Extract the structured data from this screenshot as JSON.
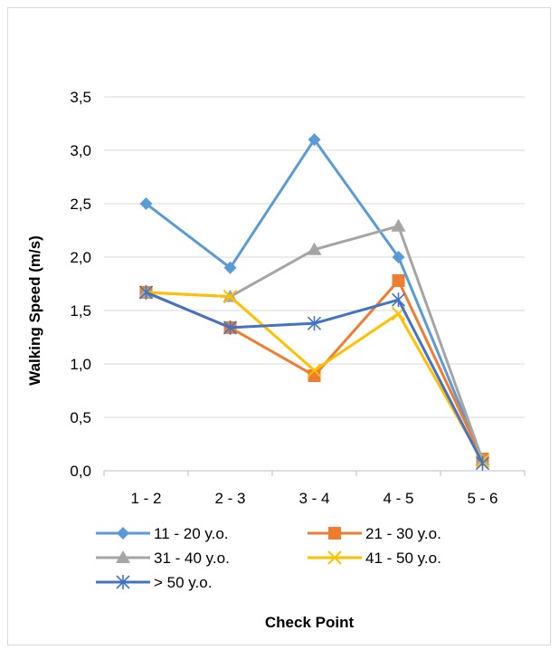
{
  "chart_data": {
    "type": "line",
    "title": "",
    "xlabel": "Check Point",
    "ylabel": "Walking Speed (m/s)",
    "categories": [
      "1 - 2",
      "2 - 3",
      "3 - 4",
      "4 - 5",
      "5 - 6"
    ],
    "ylim": [
      0,
      3.5
    ],
    "y_ticks": [
      "0,0",
      "0,5",
      "1,0",
      "1,5",
      "2,0",
      "2,5",
      "3,0",
      "3,5"
    ],
    "grid": true,
    "legend_position": "bottom",
    "series": [
      {
        "name": "11 - 20 y.o.",
        "color": "#5B9BD5",
        "marker": "diamond",
        "values": [
          2.5,
          1.9,
          3.1,
          2.0,
          0.1
        ]
      },
      {
        "name": "21 - 30 y.o.",
        "color": "#ED7D31",
        "marker": "square",
        "values": [
          1.67,
          1.34,
          0.89,
          1.78,
          0.11
        ]
      },
      {
        "name": "31 - 40 y.o.",
        "color": "#A5A5A5",
        "marker": "triangle",
        "values": [
          1.67,
          1.63,
          2.07,
          2.29,
          0.1
        ]
      },
      {
        "name": "41 - 50 y.o.",
        "color": "#FFC000",
        "marker": "x",
        "values": [
          1.67,
          1.63,
          0.94,
          1.47,
          0.09
        ]
      },
      {
        "name": "> 50 y.o.",
        "color": "#4472C4",
        "marker": "star",
        "values": [
          1.67,
          1.34,
          1.38,
          1.6,
          0.07
        ]
      }
    ]
  }
}
